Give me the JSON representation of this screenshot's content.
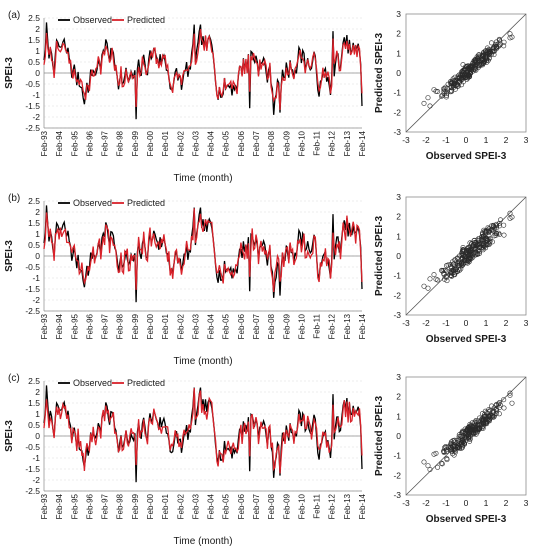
{
  "panels": [
    {
      "label": "(a)"
    },
    {
      "label": "(b)"
    },
    {
      "label": "(c)"
    }
  ],
  "chart_data": [
    {
      "type": "line",
      "panel": "(a)",
      "ylabel": "SPEI-3",
      "xlabel": "Time (month)",
      "ylim": [
        -2.5,
        2.5
      ],
      "yticks": [
        "2.5",
        "2",
        "1.5",
        "1",
        "0.5",
        "0",
        "-0.5",
        "-1",
        "-1.5",
        "-2",
        "-2.5"
      ],
      "xtick_labels": [
        "Feb-93",
        "Feb-94",
        "Feb-95",
        "Feb-96",
        "Feb-97",
        "Feb-98",
        "Feb-99",
        "Feb-00",
        "Feb-01",
        "Feb-02",
        "Feb-03",
        "Feb-04",
        "Feb-05",
        "Feb-06",
        "Feb-07",
        "Feb-08",
        "Feb-09",
        "Feb-10",
        "Feb-11",
        "Feb-12",
        "Feb-13",
        "Feb-14"
      ],
      "grid": true,
      "legend": "top-left",
      "colors": {
        "observed": "#000000",
        "predicted": "#d9222a"
      },
      "series": [
        {
          "name": "Observed",
          "key": "observed"
        },
        {
          "name": "Predicted",
          "key": "predicted"
        }
      ],
      "seed": 11,
      "noise": 0.32
    },
    {
      "type": "scatter",
      "panel": "(a)",
      "xlabel": "Observed SPEI-3",
      "ylabel": "Predicted SPEI-3",
      "xlim": [
        -3,
        3
      ],
      "ylim": [
        -3,
        3
      ],
      "ticks": [
        "-3",
        "-2",
        "-1",
        "0",
        "1",
        "2",
        "3"
      ],
      "reference_line": "1:1",
      "marker": "open circle",
      "seed": 11,
      "noise": 0.32
    },
    {
      "type": "line",
      "panel": "(b)",
      "ylabel": "SPEI-3",
      "xlabel": "Time (month)",
      "ylim": [
        -2.5,
        2.5
      ],
      "yticks": [
        "2.5",
        "2",
        "1.5",
        "1",
        "0.5",
        "0",
        "-0.5",
        "-1",
        "-1.5",
        "-2",
        "-2.5"
      ],
      "xtick_labels": [
        "Feb-93",
        "Feb-94",
        "Feb-95",
        "Feb-96",
        "Feb-97",
        "Feb-98",
        "Feb-99",
        "Feb-00",
        "Feb-01",
        "Feb-02",
        "Feb-03",
        "Feb-04",
        "Feb-05",
        "Feb-06",
        "Feb-07",
        "Feb-08",
        "Feb-09",
        "Feb-10",
        "Feb-11",
        "Feb-12",
        "Feb-13",
        "Feb-14"
      ],
      "grid": true,
      "legend": "top-left",
      "colors": {
        "observed": "#000000",
        "predicted": "#d9222a"
      },
      "series": [
        {
          "name": "Observed",
          "key": "observed"
        },
        {
          "name": "Predicted",
          "key": "predicted"
        }
      ],
      "seed": 23,
      "noise": 0.42
    },
    {
      "type": "scatter",
      "panel": "(b)",
      "xlabel": "Observed SPEI-3",
      "ylabel": "Predicted SPEI-3",
      "xlim": [
        -3,
        3
      ],
      "ylim": [
        -3,
        3
      ],
      "ticks": [
        "-3",
        "-2",
        "-1",
        "0",
        "1",
        "2",
        "3"
      ],
      "reference_line": "1:1",
      "marker": "open circle",
      "seed": 23,
      "noise": 0.42
    },
    {
      "type": "line",
      "panel": "(c)",
      "ylabel": "SPEI-3",
      "xlabel": "Time (month)",
      "ylim": [
        -2.5,
        2.5
      ],
      "yticks": [
        "2.5",
        "2",
        "1.5",
        "1",
        "0.5",
        "0",
        "-0.5",
        "-1",
        "-1.5",
        "-2",
        "-2.5"
      ],
      "xtick_labels": [
        "Feb-93",
        "Feb-94",
        "Feb-95",
        "Feb-96",
        "Feb-97",
        "Feb-98",
        "Feb-99",
        "Feb-00",
        "Feb-01",
        "Feb-02",
        "Feb-03",
        "Feb-04",
        "Feb-05",
        "Feb-06",
        "Feb-07",
        "Feb-08",
        "Feb-09",
        "Feb-10",
        "Feb-11",
        "Feb-12",
        "Feb-13",
        "Feb-14"
      ],
      "grid": true,
      "legend": "top-left",
      "colors": {
        "observed": "#000000",
        "predicted": "#d9222a"
      },
      "series": [
        {
          "name": "Observed",
          "key": "observed"
        },
        {
          "name": "Predicted",
          "key": "predicted"
        }
      ],
      "seed": 37,
      "noise": 0.36
    },
    {
      "type": "scatter",
      "panel": "(c)",
      "xlabel": "Observed SPEI-3",
      "ylabel": "Predicted SPEI-3",
      "xlim": [
        -3,
        3
      ],
      "ylim": [
        -3,
        3
      ],
      "ticks": [
        "-3",
        "-2",
        "-1",
        "0",
        "1",
        "2",
        "3"
      ],
      "reference_line": "1:1",
      "marker": "open circle",
      "seed": 37,
      "noise": 0.36
    }
  ]
}
